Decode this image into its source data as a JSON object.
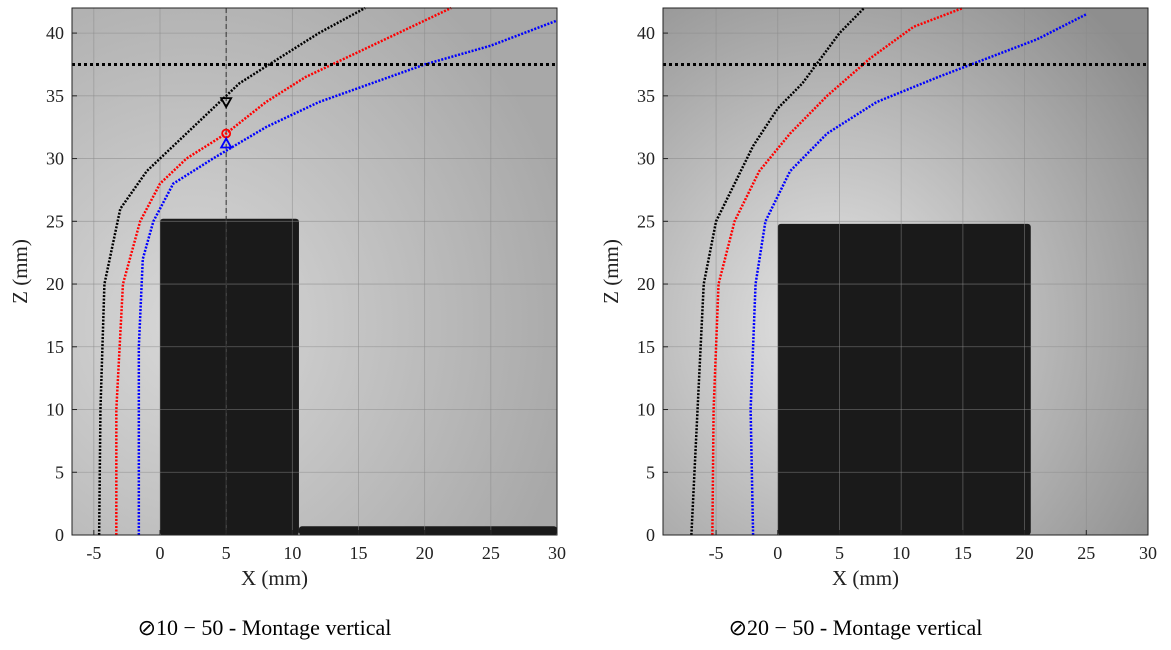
{
  "chart_data": [
    {
      "type": "line",
      "caption": "⊘10 − 50 - Montage vertical",
      "xlabel": "X (mm)",
      "ylabel": "Z (mm)",
      "xlim": [
        -6.65,
        30
      ],
      "ylim": [
        0,
        42
      ],
      "xticks": [
        -5,
        0,
        5,
        10,
        15,
        20,
        25,
        30
      ],
      "yticks": [
        0,
        5,
        10,
        15,
        20,
        25,
        30,
        35,
        40
      ],
      "grid": true,
      "hline": 37.5,
      "blocks": [
        {
          "x": [
            0,
            10.5
          ],
          "y": [
            0,
            25.2
          ]
        },
        {
          "x": [
            10.5,
            30
          ],
          "y": [
            0,
            0.7
          ]
        }
      ],
      "vline": 5,
      "markers": [
        {
          "shape": "triangle-down",
          "x": 5,
          "y": 34.5,
          "color": "#000000"
        },
        {
          "shape": "circle",
          "x": 5,
          "y": 32,
          "color": "#ff0000"
        },
        {
          "shape": "triangle",
          "x": 5,
          "y": 31.2,
          "color": "#0000ff"
        }
      ],
      "series": [
        {
          "color": "#000000",
          "x": [
            -4.6,
            -4.5,
            -4.2,
            -3,
            -1,
            1,
            3,
            6,
            9,
            12,
            15.5
          ],
          "values": [
            0,
            10,
            20,
            26,
            29,
            31,
            33,
            36,
            38,
            40,
            42
          ]
        },
        {
          "color": "#ff0000",
          "x": [
            -3.3,
            -3.3,
            -2.8,
            -1.5,
            0,
            2,
            5,
            8,
            11,
            14,
            18,
            22
          ],
          "values": [
            0,
            10,
            20,
            25,
            28,
            30,
            32,
            34.5,
            36.5,
            38,
            40,
            42
          ]
        },
        {
          "color": "#0000ff",
          "x": [
            -1.6,
            -1.6,
            -1.3,
            -0.5,
            1,
            4,
            8,
            12,
            16,
            20,
            25,
            30
          ],
          "values": [
            0,
            15,
            22,
            25,
            28,
            30,
            32.5,
            34.5,
            36,
            37.5,
            39,
            41
          ]
        }
      ]
    },
    {
      "type": "line",
      "caption": "⊘20 − 50 - Montage vertical",
      "xlabel": "X (mm)",
      "ylabel": "Z (mm)",
      "xlim": [
        -9.3,
        30
      ],
      "ylim": [
        0,
        42
      ],
      "xticks": [
        -5,
        0,
        5,
        10,
        15,
        20,
        25,
        30
      ],
      "yticks": [
        0,
        5,
        10,
        15,
        20,
        25,
        30,
        35,
        40
      ],
      "grid": true,
      "hline": 37.5,
      "blocks": [
        {
          "x": [
            0,
            20.5
          ],
          "y": [
            0,
            24.8
          ]
        }
      ],
      "series": [
        {
          "color": "#000000",
          "x": [
            -7,
            -6.5,
            -6,
            -5,
            -3.5,
            -2,
            0,
            2,
            3.5,
            5,
            7
          ],
          "values": [
            0,
            10,
            20,
            25,
            28,
            31,
            34,
            36,
            38,
            40,
            42
          ]
        },
        {
          "color": "#ff0000",
          "x": [
            -5.3,
            -5.2,
            -4.8,
            -3.5,
            -1.5,
            1,
            4,
            7.5,
            11,
            15
          ],
          "values": [
            0,
            10,
            20,
            25,
            29,
            32,
            35,
            38,
            40.5,
            42
          ]
        },
        {
          "color": "#0000ff",
          "x": [
            -2,
            -2.2,
            -1.8,
            -1,
            1,
            4,
            8,
            13,
            17,
            21,
            25
          ],
          "values": [
            0,
            10,
            20,
            25,
            29,
            32,
            34.5,
            36.5,
            38,
            39.5,
            41.5
          ]
        }
      ]
    }
  ]
}
